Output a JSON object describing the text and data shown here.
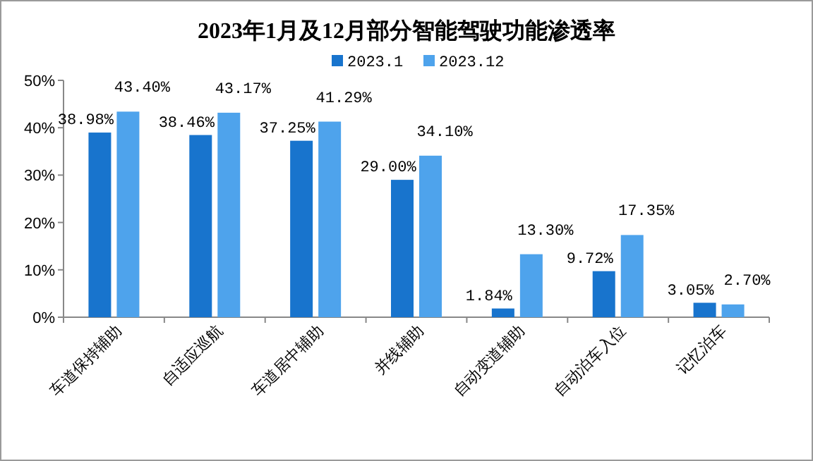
{
  "chart_data": {
    "type": "bar",
    "title": "2023年1月及12月部分智能驾驶功能渗透率",
    "categories": [
      "车道保持辅助",
      "自适应巡航",
      "车道居中辅助",
      "并线辅助",
      "自动变道辅助",
      "自动泊车入位",
      "记忆泊车"
    ],
    "series": [
      {
        "name": "2023.1",
        "color": "#1874cd",
        "values": [
          38.98,
          38.46,
          37.25,
          29.0,
          1.84,
          9.72,
          3.05
        ],
        "value_labels": [
          "38.98%",
          "38.46%",
          "37.25%",
          "29.00%",
          "1.84%",
          "9.72%",
          "3.05%"
        ]
      },
      {
        "name": "2023.12",
        "color": "#4ea3ec",
        "values": [
          43.4,
          43.17,
          41.29,
          34.1,
          13.3,
          17.35,
          2.7
        ],
        "value_labels": [
          "43.40%",
          "43.17%",
          "41.29%",
          "34.10%",
          "13.30%",
          "17.35%",
          "2.70%"
        ]
      }
    ],
    "ylim": [
      0,
      50
    ],
    "yticks": [
      {
        "value": 0,
        "label": "0%"
      },
      {
        "value": 10,
        "label": "10%"
      },
      {
        "value": 20,
        "label": "20%"
      },
      {
        "value": 30,
        "label": "30%"
      },
      {
        "value": 40,
        "label": "40%"
      },
      {
        "value": 50,
        "label": "50%"
      }
    ],
    "grid": false,
    "legend": "top"
  }
}
